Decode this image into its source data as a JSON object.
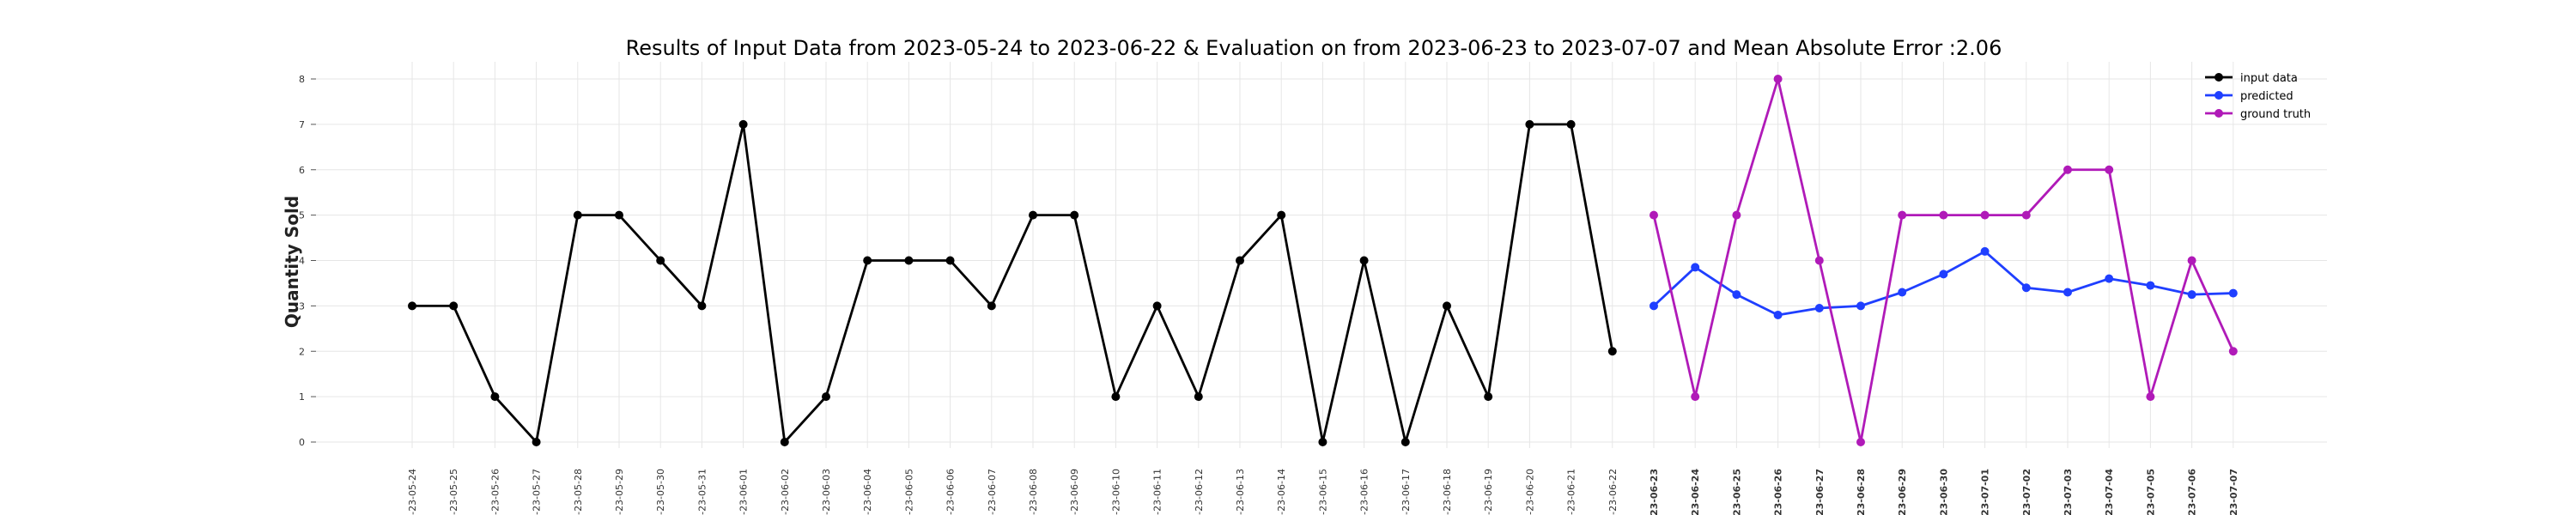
{
  "chart_data": {
    "type": "line",
    "title": "Results of Input Data from 2023-05-24 to 2023-06-22 & Evaluation on from 2023-06-23 to 2023-07-07 and Mean Absolute Error  :2.06",
    "xlabel": "",
    "ylabel": "Quantity Sold",
    "ylim": [
      0,
      8
    ],
    "yticks": [
      0,
      1,
      2,
      3,
      4,
      5,
      6,
      7,
      8
    ],
    "grid": true,
    "legend_position": "top-right",
    "x": [
      "2023-05-24",
      "2023-05-25",
      "2023-05-26",
      "2023-05-27",
      "2023-05-28",
      "2023-05-29",
      "2023-05-30",
      "2023-05-31",
      "2023-06-01",
      "2023-06-02",
      "2023-06-03",
      "2023-06-04",
      "2023-06-05",
      "2023-06-06",
      "2023-06-07",
      "2023-06-08",
      "2023-06-09",
      "2023-06-10",
      "2023-06-11",
      "2023-06-12",
      "2023-06-13",
      "2023-06-14",
      "2023-06-15",
      "2023-06-16",
      "2023-06-17",
      "2023-06-18",
      "2023-06-19",
      "2023-06-20",
      "2023-06-21",
      "2023-06-22",
      "2023-06-23",
      "2023-06-24",
      "2023-06-25",
      "2023-06-26",
      "2023-06-27",
      "2023-06-28",
      "2023-06-29",
      "2023-06-30",
      "2023-07-01",
      "2023-07-02",
      "2023-07-03",
      "2023-07-04",
      "2023-07-05",
      "2023-07-06",
      "2023-07-07"
    ],
    "xtick_labels": [
      "-23-05-24",
      "-23-05-25",
      "-23-05-26",
      "-23-05-27",
      "-23-05-28",
      "-23-05-29",
      "-23-05-30",
      "-23-05-31",
      "-23-06-01",
      "-23-06-02",
      "-23-06-03",
      "-23-06-04",
      "-23-06-05",
      "-23-06-06",
      "-23-06-07",
      "-23-06-08",
      "-23-06-09",
      "-23-06-10",
      "-23-06-11",
      "-23-06-12",
      "-23-06-13",
      "-23-06-14",
      "-23-06-15",
      "-23-06-16",
      "-23-06-17",
      "-23-06-18",
      "-23-06-19",
      "-23-06-20",
      "-23-06-21",
      "-23-06-22",
      "-23-06-23",
      "-23-06-24",
      "-23-06-25",
      "-23-06-26",
      "-23-06-27",
      "-23-06-28",
      "-23-06-29",
      "-23-06-30",
      "-23-07-01",
      "-23-07-02",
      "-23-07-03",
      "-23-07-04",
      "-23-07-05",
      "-23-07-06",
      "-23-07-07"
    ],
    "bold_tick_from": "2023-06-23",
    "series": [
      {
        "name": "input data",
        "color": "#000000",
        "x": [
          "2023-05-24",
          "2023-05-25",
          "2023-05-26",
          "2023-05-27",
          "2023-05-28",
          "2023-05-29",
          "2023-05-30",
          "2023-05-31",
          "2023-06-01",
          "2023-06-02",
          "2023-06-03",
          "2023-06-04",
          "2023-06-05",
          "2023-06-06",
          "2023-06-07",
          "2023-06-08",
          "2023-06-09",
          "2023-06-10",
          "2023-06-11",
          "2023-06-12",
          "2023-06-13",
          "2023-06-14",
          "2023-06-15",
          "2023-06-16",
          "2023-06-17",
          "2023-06-18",
          "2023-06-19",
          "2023-06-20",
          "2023-06-21",
          "2023-06-22"
        ],
        "values": [
          3,
          3,
          1,
          0,
          5,
          5,
          4,
          3,
          7,
          0,
          1,
          4,
          4,
          4,
          3,
          5,
          5,
          1,
          3,
          1,
          4,
          5,
          0,
          4,
          0,
          3,
          1,
          7,
          7,
          2
        ]
      },
      {
        "name": "predicted",
        "color": "#1f3fff",
        "x": [
          "2023-06-23",
          "2023-06-24",
          "2023-06-25",
          "2023-06-26",
          "2023-06-27",
          "2023-06-28",
          "2023-06-29",
          "2023-06-30",
          "2023-07-01",
          "2023-07-02",
          "2023-07-03",
          "2023-07-04",
          "2023-07-05",
          "2023-07-06",
          "2023-07-07"
        ],
        "values": [
          3.0,
          3.85,
          3.25,
          2.8,
          2.95,
          3.0,
          3.3,
          3.7,
          4.2,
          3.4,
          3.3,
          3.6,
          3.45,
          3.25,
          3.28
        ]
      },
      {
        "name": "ground truth",
        "color": "#b01ab8",
        "x": [
          "2023-06-23",
          "2023-06-24",
          "2023-06-25",
          "2023-06-26",
          "2023-06-27",
          "2023-06-28",
          "2023-06-29",
          "2023-06-30",
          "2023-07-01",
          "2023-07-02",
          "2023-07-03",
          "2023-07-04",
          "2023-07-05",
          "2023-07-06",
          "2023-07-07"
        ],
        "values": [
          5,
          1,
          5,
          8,
          4,
          0,
          5,
          5,
          5,
          5,
          6,
          6,
          1,
          4,
          2
        ]
      }
    ]
  }
}
